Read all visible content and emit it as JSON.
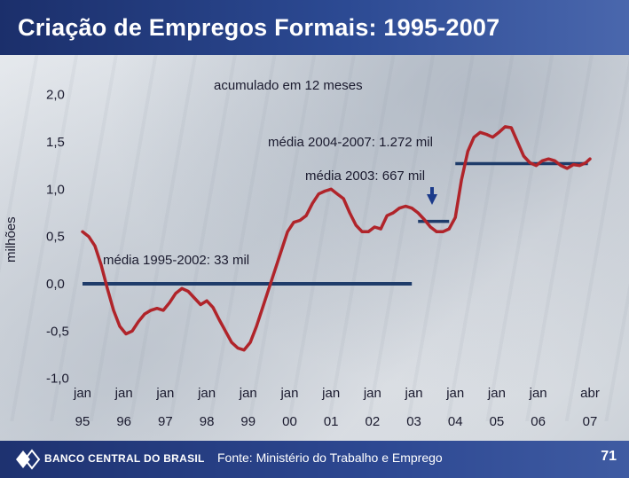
{
  "header": {
    "title": "Criação de Empregos Formais: 1995-2007"
  },
  "footer": {
    "organization": "BANCO CENTRAL DO BRASIL",
    "source": "Fonte: Ministério do Trabalho e Emprego",
    "page_number": "71"
  },
  "colors": {
    "series": "#b0242a",
    "average": "#1f3c6a",
    "marker": "#1b3a8a",
    "header": "#1b2f6b"
  },
  "chart_data": {
    "type": "line",
    "subtitle": "acumulado em 12 meses",
    "ylabel": "milhões",
    "ylim": [
      -1.0,
      2.0
    ],
    "yticks": [
      2.0,
      1.5,
      1.0,
      0.5,
      0.0,
      -0.5,
      -1.0
    ],
    "ytick_labels": [
      "2,0",
      "1,5",
      "1,0",
      "0,5",
      "0,0",
      "-0,5",
      "-1,0"
    ],
    "xlim": [
      1994.75,
      2007.5
    ],
    "xticks": [
      {
        "x": 1995.0,
        "top": "jan",
        "bottom": "95"
      },
      {
        "x": 1996.0,
        "top": "jan",
        "bottom": "96"
      },
      {
        "x": 1997.0,
        "top": "jan",
        "bottom": "97"
      },
      {
        "x": 1998.0,
        "top": "jan",
        "bottom": "98"
      },
      {
        "x": 1999.0,
        "top": "jan",
        "bottom": "99"
      },
      {
        "x": 2000.0,
        "top": "jan",
        "bottom": "00"
      },
      {
        "x": 2001.0,
        "top": "jan",
        "bottom": "01"
      },
      {
        "x": 2002.0,
        "top": "jan",
        "bottom": "02"
      },
      {
        "x": 2003.0,
        "top": "jan",
        "bottom": "03"
      },
      {
        "x": 2004.0,
        "top": "jan",
        "bottom": "04"
      },
      {
        "x": 2005.0,
        "top": "jan",
        "bottom": "05"
      },
      {
        "x": 2006.0,
        "top": "jan",
        "bottom": "06"
      },
      {
        "x": 2007.25,
        "top": "abr",
        "bottom": "07"
      }
    ],
    "series": [
      {
        "x": [
          1995.0,
          1995.15,
          1995.3,
          1995.45,
          1995.6,
          1995.75,
          1995.9,
          1996.05,
          1996.2,
          1996.35,
          1996.5,
          1996.65,
          1996.8,
          1996.95,
          1997.1,
          1997.25,
          1997.4,
          1997.55,
          1997.7,
          1997.85,
          1998.0,
          1998.15,
          1998.3,
          1998.45,
          1998.6,
          1998.75,
          1998.9,
          1999.05,
          1999.2,
          1999.35,
          1999.5,
          1999.65,
          1999.8,
          1999.95,
          2000.1,
          2000.25,
          2000.4,
          2000.55,
          2000.7,
          2000.85,
          2001.0,
          2001.15,
          2001.3,
          2001.45,
          2001.6,
          2001.75,
          2001.9,
          2002.05,
          2002.2,
          2002.35,
          2002.5,
          2002.65,
          2002.8,
          2002.95,
          2003.1,
          2003.25,
          2003.4,
          2003.55,
          2003.7,
          2003.85,
          2004.0,
          2004.15,
          2004.3,
          2004.45,
          2004.6,
          2004.75,
          2004.9,
          2005.05,
          2005.2,
          2005.35,
          2005.5,
          2005.65,
          2005.8,
          2005.95,
          2006.1,
          2006.25,
          2006.4,
          2006.55,
          2006.7,
          2006.85,
          2007.0,
          2007.15,
          2007.25
        ],
        "values": [
          0.55,
          0.5,
          0.4,
          0.2,
          -0.05,
          -0.28,
          -0.45,
          -0.53,
          -0.5,
          -0.4,
          -0.32,
          -0.28,
          -0.26,
          -0.28,
          -0.2,
          -0.1,
          -0.05,
          -0.08,
          -0.15,
          -0.22,
          -0.18,
          -0.25,
          -0.38,
          -0.5,
          -0.62,
          -0.68,
          -0.7,
          -0.62,
          -0.45,
          -0.25,
          -0.05,
          0.15,
          0.35,
          0.55,
          0.65,
          0.67,
          0.72,
          0.85,
          0.95,
          0.98,
          1.0,
          0.95,
          0.9,
          0.75,
          0.62,
          0.55,
          0.55,
          0.6,
          0.58,
          0.72,
          0.75,
          0.8,
          0.82,
          0.8,
          0.75,
          0.68,
          0.6,
          0.55,
          0.55,
          0.58,
          0.7,
          1.1,
          1.4,
          1.55,
          1.6,
          1.58,
          1.55,
          1.6,
          1.66,
          1.65,
          1.5,
          1.35,
          1.28,
          1.25,
          1.3,
          1.32,
          1.3,
          1.25,
          1.22,
          1.26,
          1.25,
          1.28,
          1.32
        ]
      }
    ],
    "averages": [
      {
        "label": "média 1995-2002: 33 mil",
        "x_start": 1995.0,
        "x_end": 2002.95,
        "y": 0.0
      },
      {
        "label": "média 2003: 667 mil",
        "x_start": 2003.1,
        "x_end": 2003.85,
        "y": 0.66
      },
      {
        "label": "média 2004-2007: 1.272 mil",
        "x_start": 2004.0,
        "x_end": 2007.2,
        "y": 1.27
      }
    ],
    "grid": false,
    "legend": "none"
  }
}
